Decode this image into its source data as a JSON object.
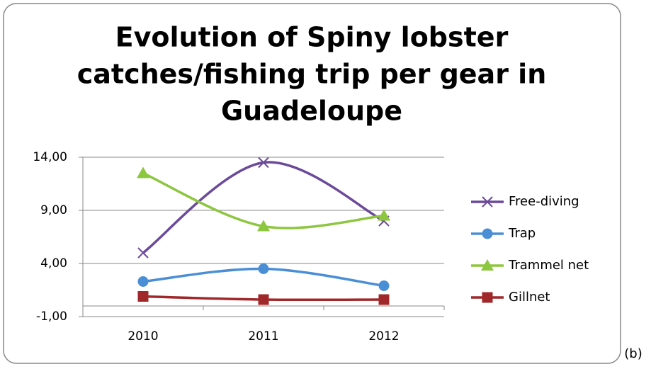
{
  "chart_data": {
    "type": "line",
    "title_lines": [
      "Evolution of Spiny lobster",
      "catches/fishing trip per gear in",
      "Guadeloupe"
    ],
    "categories": [
      "2010",
      "2011",
      "2012"
    ],
    "series": [
      {
        "name": "Free-diving",
        "color": "#6b4a9a",
        "marker": "x",
        "values": [
          5.0,
          13.5,
          8.0
        ]
      },
      {
        "name": "Trap",
        "color": "#4a8fd6",
        "marker": "circle",
        "values": [
          2.3,
          3.5,
          1.9
        ]
      },
      {
        "name": "Trammel net",
        "color": "#8dc63f",
        "marker": "triangle",
        "values": [
          12.5,
          7.5,
          8.5
        ]
      },
      {
        "name": "Gillnet",
        "color": "#a0282a",
        "marker": "square",
        "values": [
          0.9,
          0.6,
          0.6
        ]
      }
    ],
    "ylim": [
      -1,
      14
    ],
    "yticks": [
      {
        "value": -1,
        "label": "-1,00"
      },
      {
        "value": 4,
        "label": "4,00"
      },
      {
        "value": 9,
        "label": "9,00"
      },
      {
        "value": 14,
        "label": "14,00"
      }
    ],
    "grid": true,
    "smooth": true,
    "legend": "right",
    "panel_label": "(b)"
  }
}
